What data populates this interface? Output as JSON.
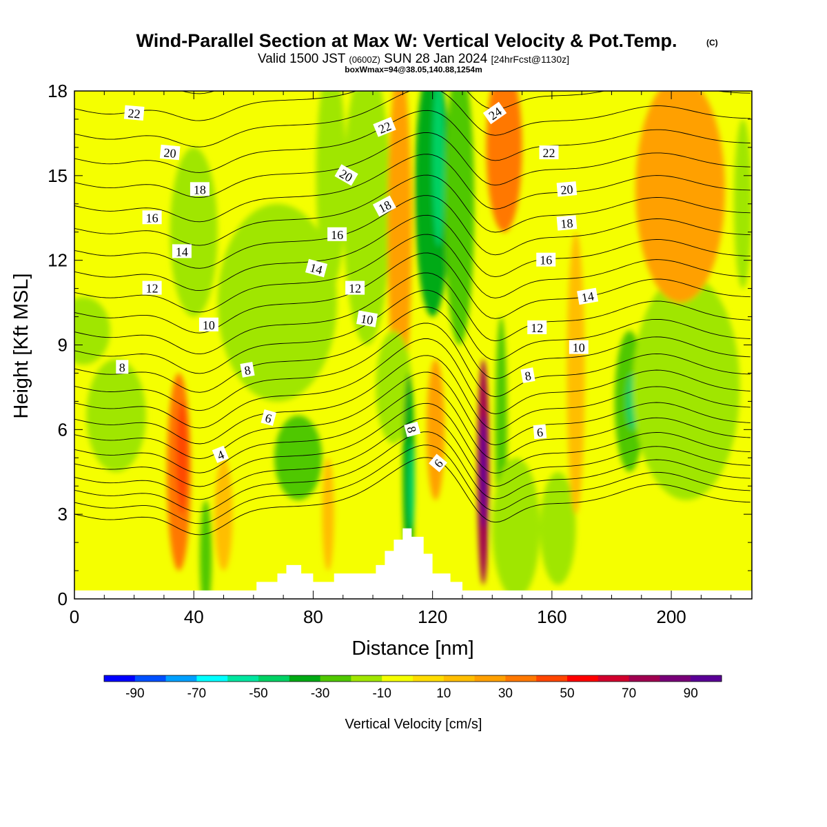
{
  "header": {
    "title": "Wind-Parallel Section at Max W: Vertical Velocity & Pot.Temp.",
    "copyright": "(C)",
    "valid_prefix": "Valid 1500 JST",
    "valid_utc": "(0600Z)",
    "valid_date": "SUN 28 Jan 2024",
    "forecast": "[24hrFcst@1130z]",
    "box_info": "boxWmax=94@38.05,140.88,1254m"
  },
  "chart_data": {
    "type": "heatmap",
    "xlabel": "Distance [nm]",
    "ylabel": "Height [Kft MSL]",
    "xlim": [
      0,
      227
    ],
    "ylim": [
      0,
      18
    ],
    "x_ticks": [
      0,
      40,
      80,
      120,
      160,
      200
    ],
    "y_ticks": [
      0,
      3,
      6,
      9,
      12,
      15,
      18
    ],
    "grid": false,
    "colorbar": {
      "title": "Vertical Velocity [cm/s]",
      "tick_labels": [
        "-90",
        "-70",
        "-50",
        "-30",
        "-10",
        "10",
        "30",
        "50",
        "70",
        "90"
      ],
      "bounds": [
        -100,
        100
      ],
      "step": 10,
      "colors": [
        "#0000ff",
        "#0050ff",
        "#00a0ff",
        "#00ffff",
        "#00e6a0",
        "#00d264",
        "#00aa14",
        "#50c800",
        "#a0e600",
        "#f5ff00",
        "#ffdc00",
        "#ffbe00",
        "#ffa000",
        "#ff7800",
        "#ff4600",
        "#ff0000",
        "#d2002d",
        "#a00050",
        "#780078",
        "#5a0096"
      ],
      "placement": "bottom"
    },
    "vertical_velocity_cells": [
      {
        "x": 3,
        "z": 9.5,
        "rx": 9,
        "rz": 1.2,
        "w": -15
      },
      {
        "x": 14,
        "z": 6.5,
        "rx": 10,
        "rz": 2.0,
        "w": -12
      },
      {
        "x": 35,
        "z": 4.5,
        "rx": 4,
        "rz": 3.5,
        "w": 35
      },
      {
        "x": 36,
        "z": 5.0,
        "rx": 2,
        "rz": 2.0,
        "w": 45
      },
      {
        "x": 40,
        "z": 13.0,
        "rx": 8,
        "rz": 3.0,
        "w": -12
      },
      {
        "x": 44,
        "z": 1.5,
        "rx": 2,
        "rz": 2.0,
        "w": -22
      },
      {
        "x": 50,
        "z": 3.0,
        "rx": 3,
        "rz": 2.0,
        "w": 15
      },
      {
        "x": 68,
        "z": 10.5,
        "rx": 20,
        "rz": 3.5,
        "w": -12
      },
      {
        "x": 75,
        "z": 5.0,
        "rx": 8,
        "rz": 1.5,
        "w": -25
      },
      {
        "x": 86,
        "z": 15.0,
        "rx": 5,
        "rz": 4.0,
        "w": -18
      },
      {
        "x": 85,
        "z": 3.0,
        "rx": 2,
        "rz": 2.0,
        "w": 18
      },
      {
        "x": 98,
        "z": 14.0,
        "rx": 8,
        "rz": 5.0,
        "w": -12
      },
      {
        "x": 109,
        "z": 13.0,
        "rx": 4,
        "rz": 6.0,
        "w": 25
      },
      {
        "x": 107,
        "z": 7.5,
        "rx": 6,
        "rz": 2.0,
        "w": -15
      },
      {
        "x": 112,
        "z": 4.5,
        "rx": 2,
        "rz": 3.5,
        "w": -40
      },
      {
        "x": 113,
        "z": 4.0,
        "rx": 1,
        "rz": 1.5,
        "w": -50
      },
      {
        "x": 120,
        "z": 14.5,
        "rx": 6,
        "rz": 4.5,
        "w": -40
      },
      {
        "x": 122,
        "z": 15.5,
        "rx": 2,
        "rz": 3.0,
        "w": -50
      },
      {
        "x": 129,
        "z": 14.0,
        "rx": 5,
        "rz": 5.0,
        "w": -30
      },
      {
        "x": 121,
        "z": 6.0,
        "rx": 3,
        "rz": 2.5,
        "w": 28
      },
      {
        "x": 137,
        "z": 4.5,
        "rx": 2,
        "rz": 4.0,
        "w": 75
      },
      {
        "x": 137,
        "z": 4.5,
        "rx": 1,
        "rz": 2.0,
        "w": 95
      },
      {
        "x": 143,
        "z": 6.0,
        "rx": 2,
        "rz": 4.0,
        "w": -30
      },
      {
        "x": 144,
        "z": 16.0,
        "rx": 6,
        "rz": 3.0,
        "w": 30
      },
      {
        "x": 148,
        "z": 2.5,
        "rx": 8,
        "rz": 2.5,
        "w": -15
      },
      {
        "x": 162,
        "z": 2.5,
        "rx": 6,
        "rz": 2.0,
        "w": -20
      },
      {
        "x": 168,
        "z": 8.0,
        "rx": 3,
        "rz": 5.0,
        "w": 15
      },
      {
        "x": 186,
        "z": 7.0,
        "rx": 5,
        "rz": 2.5,
        "w": -30
      },
      {
        "x": 187,
        "z": 7.0,
        "rx": 2,
        "rz": 1.0,
        "w": -45
      },
      {
        "x": 200,
        "z": 6.0,
        "rx": 6,
        "rz": 2.0,
        "w": -25
      },
      {
        "x": 205,
        "z": 7.5,
        "rx": 18,
        "rz": 4.0,
        "w": -12
      },
      {
        "x": 203,
        "z": 14.5,
        "rx": 15,
        "rz": 4.0,
        "w": 25
      },
      {
        "x": 224,
        "z": 14.0,
        "rx": 3,
        "rz": 3.0,
        "w": -12
      }
    ],
    "terrain": {
      "x": [
        0,
        61,
        61,
        68,
        68,
        71,
        71,
        76,
        76,
        80,
        80,
        87,
        87,
        101,
        101,
        104,
        104,
        107,
        107,
        110,
        110,
        113,
        113,
        117,
        117,
        120,
        120,
        126,
        126,
        130,
        130,
        134,
        134,
        227
      ],
      "z": [
        0.3,
        0.3,
        0.6,
        0.6,
        0.9,
        0.9,
        1.2,
        1.2,
        0.9,
        0.9,
        0.6,
        0.6,
        0.9,
        0.9,
        1.2,
        1.2,
        1.7,
        1.7,
        2.1,
        2.1,
        2.5,
        2.5,
        2.2,
        2.2,
        1.6,
        1.6,
        0.9,
        0.9,
        0.6,
        0.6,
        0.3,
        0.3,
        0.3,
        0.3
      ]
    },
    "contour_labels": [
      {
        "text": "22",
        "x": 20,
        "z": 17.2,
        "angle": 5
      },
      {
        "text": "20",
        "x": 32,
        "z": 15.8,
        "angle": 5
      },
      {
        "text": "18",
        "x": 42,
        "z": 14.5,
        "angle": 0
      },
      {
        "text": "16",
        "x": 26,
        "z": 13.5,
        "angle": 0
      },
      {
        "text": "14",
        "x": 36,
        "z": 12.3,
        "angle": 0
      },
      {
        "text": "12",
        "x": 26,
        "z": 11.0,
        "angle": 0
      },
      {
        "text": "10",
        "x": 45,
        "z": 9.7,
        "angle": 0
      },
      {
        "text": "8",
        "x": 16,
        "z": 8.2,
        "angle": 0
      },
      {
        "text": "8",
        "x": 58,
        "z": 8.1,
        "angle": -10
      },
      {
        "text": "6",
        "x": 65,
        "z": 6.4,
        "angle": 15
      },
      {
        "text": "4",
        "x": 49,
        "z": 5.1,
        "angle": -22
      },
      {
        "text": "22",
        "x": 104,
        "z": 16.7,
        "angle": -22
      },
      {
        "text": "20",
        "x": 91,
        "z": 15.0,
        "angle": 30
      },
      {
        "text": "18",
        "x": 104,
        "z": 13.9,
        "angle": -28
      },
      {
        "text": "16",
        "x": 88,
        "z": 12.9,
        "angle": 0
      },
      {
        "text": "14",
        "x": 81,
        "z": 11.7,
        "angle": 15
      },
      {
        "text": "12",
        "x": 94,
        "z": 11.0,
        "angle": 0
      },
      {
        "text": "10",
        "x": 98,
        "z": 9.9,
        "angle": 10
      },
      {
        "text": "8",
        "x": 113,
        "z": 6.0,
        "angle": 75
      },
      {
        "text": "6",
        "x": 122,
        "z": 4.8,
        "angle": -50
      },
      {
        "text": "24",
        "x": 141,
        "z": 17.2,
        "angle": -35
      },
      {
        "text": "22",
        "x": 159,
        "z": 15.8,
        "angle": 0
      },
      {
        "text": "20",
        "x": 165,
        "z": 14.5,
        "angle": -5
      },
      {
        "text": "18",
        "x": 165,
        "z": 13.3,
        "angle": -5
      },
      {
        "text": "16",
        "x": 158,
        "z": 12.0,
        "angle": 0
      },
      {
        "text": "14",
        "x": 172,
        "z": 10.7,
        "angle": -10
      },
      {
        "text": "12",
        "x": 155,
        "z": 9.6,
        "angle": 0
      },
      {
        "text": "10",
        "x": 169,
        "z": 8.9,
        "angle": 0
      },
      {
        "text": "8",
        "x": 152,
        "z": 7.9,
        "angle": -10
      },
      {
        "text": "6",
        "x": 156,
        "z": 5.9,
        "angle": -5
      }
    ]
  }
}
